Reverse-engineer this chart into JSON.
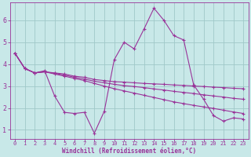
{
  "bg_color": "#c8e8e8",
  "grid_color": "#a0c8c8",
  "line_color": "#993399",
  "xlabel": "Windchill (Refroidissement éolien,°C)",
  "xlabel_color": "#993399",
  "tick_color": "#993399",
  "xlim": [
    -0.5,
    23.5
  ],
  "ylim": [
    0.6,
    6.8
  ],
  "yticks": [
    1,
    2,
    3,
    4,
    5,
    6
  ],
  "xticks": [
    0,
    1,
    2,
    3,
    4,
    5,
    6,
    7,
    8,
    9,
    10,
    11,
    12,
    13,
    14,
    15,
    16,
    17,
    18,
    19,
    20,
    21,
    22,
    23
  ],
  "series": [
    {
      "x": [
        0,
        1,
        2,
        3,
        4,
        5,
        6,
        7,
        8,
        9,
        10,
        11,
        12,
        13,
        14,
        15,
        16,
        17,
        18,
        19,
        20,
        21,
        22,
        23
      ],
      "y": [
        4.5,
        3.8,
        3.6,
        3.7,
        2.55,
        1.8,
        1.75,
        1.8,
        0.85,
        1.85,
        4.2,
        5.0,
        4.7,
        5.6,
        6.55,
        6.0,
        5.3,
        5.1,
        3.05,
        2.4,
        1.65,
        1.4,
        1.55,
        1.5
      ]
    },
    {
      "x": [
        0,
        1,
        2,
        3,
        4,
        5,
        6,
        7,
        8,
        9,
        10,
        11,
        12,
        13,
        14,
        15,
        16,
        17,
        18,
        19,
        20,
        21,
        22,
        23
      ],
      "y": [
        4.5,
        3.8,
        3.6,
        3.65,
        3.6,
        3.55,
        3.45,
        3.4,
        3.3,
        3.25,
        3.2,
        3.18,
        3.15,
        3.12,
        3.1,
        3.08,
        3.05,
        3.03,
        3.0,
        2.98,
        2.95,
        2.93,
        2.9,
        2.88
      ]
    },
    {
      "x": [
        0,
        1,
        2,
        3,
        4,
        5,
        6,
        7,
        8,
        9,
        10,
        11,
        12,
        13,
        14,
        15,
        16,
        17,
        18,
        19,
        20,
        21,
        22,
        23
      ],
      "y": [
        4.5,
        3.8,
        3.6,
        3.65,
        3.58,
        3.5,
        3.4,
        3.32,
        3.22,
        3.15,
        3.08,
        3.02,
        2.98,
        2.93,
        2.87,
        2.82,
        2.76,
        2.71,
        2.66,
        2.6,
        2.55,
        2.5,
        2.44,
        2.4
      ]
    },
    {
      "x": [
        0,
        1,
        2,
        3,
        4,
        5,
        6,
        7,
        8,
        9,
        10,
        11,
        12,
        13,
        14,
        15,
        16,
        17,
        18,
        19,
        20,
        21,
        22,
        23
      ],
      "y": [
        4.5,
        3.8,
        3.6,
        3.65,
        3.55,
        3.45,
        3.35,
        3.25,
        3.12,
        3.0,
        2.88,
        2.78,
        2.68,
        2.58,
        2.48,
        2.38,
        2.28,
        2.2,
        2.12,
        2.05,
        1.98,
        1.9,
        1.82,
        1.75
      ]
    }
  ]
}
